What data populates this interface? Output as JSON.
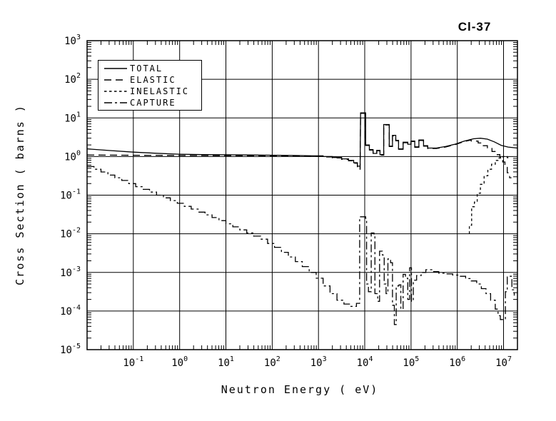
{
  "title": "Cl-37",
  "colors": {
    "foreground": "#000000",
    "background": "#ffffff"
  },
  "legend": {
    "items": [
      {
        "label": "TOTAL",
        "line_style": "solid"
      },
      {
        "label": "ELASTIC",
        "line_style": "long-dash"
      },
      {
        "label": "INELASTIC",
        "line_style": "short-dash"
      },
      {
        "label": "CAPTURE",
        "line_style": "dash-dot"
      }
    ]
  },
  "chart_data": {
    "type": "line",
    "title": "Cl-37",
    "xlabel": "Neutron Energy ( eV)",
    "ylabel": "Cross Section ( barns )",
    "xscale": "log10",
    "yscale": "log10",
    "x_units": "eV",
    "y_units": "barns",
    "xlim_log10": [
      -2,
      7.3
    ],
    "ylim_log10": [
      -5,
      3
    ],
    "x_tick_exponents": [
      -1,
      0,
      1,
      2,
      3,
      4,
      5,
      6,
      7
    ],
    "y_tick_exponents": [
      3,
      2,
      1,
      0,
      -1,
      -2,
      -3,
      -4,
      -5
    ],
    "grid": true,
    "legend_position": "top-left-inside",
    "series": [
      {
        "name": "TOTAL",
        "line_style": "solid",
        "dash": "",
        "mode": "line",
        "points_log10": [
          [
            -2.0,
            0.2
          ],
          [
            -1.5,
            0.155
          ],
          [
            -1.0,
            0.115
          ],
          [
            -0.5,
            0.085
          ],
          [
            0.0,
            0.06
          ],
          [
            0.5,
            0.05
          ],
          [
            1.0,
            0.045
          ],
          [
            1.5,
            0.04
          ],
          [
            2.0,
            0.035
          ],
          [
            2.5,
            0.028
          ],
          [
            2.9,
            0.018
          ],
          [
            3.1,
            0.018
          ],
          [
            3.1,
            0.0
          ],
          [
            3.3,
            0.0
          ],
          [
            3.3,
            -0.025
          ],
          [
            3.5,
            -0.025
          ],
          [
            3.5,
            -0.06
          ],
          [
            3.65,
            -0.06
          ],
          [
            3.65,
            -0.1
          ],
          [
            3.76,
            -0.1
          ],
          [
            3.76,
            -0.16
          ],
          [
            3.84,
            -0.16
          ],
          [
            3.84,
            -0.25
          ],
          [
            3.9,
            -0.25
          ],
          [
            3.9,
            -0.33
          ],
          [
            3.91,
            1.13
          ],
          [
            4.02,
            1.13
          ],
          [
            4.02,
            0.3
          ],
          [
            4.1,
            0.3
          ],
          [
            4.1,
            0.18
          ],
          [
            4.18,
            0.18
          ],
          [
            4.18,
            0.08
          ],
          [
            4.26,
            0.08
          ],
          [
            4.26,
            0.16
          ],
          [
            4.33,
            0.16
          ],
          [
            4.33,
            0.05
          ],
          [
            4.41,
            0.05
          ],
          [
            4.41,
            0.83
          ],
          [
            4.53,
            0.83
          ],
          [
            4.53,
            0.27
          ],
          [
            4.6,
            0.27
          ],
          [
            4.6,
            0.55
          ],
          [
            4.67,
            0.55
          ],
          [
            4.67,
            0.42
          ],
          [
            4.73,
            0.42
          ],
          [
            4.73,
            0.2
          ],
          [
            4.83,
            0.2
          ],
          [
            4.83,
            0.37
          ],
          [
            4.93,
            0.37
          ],
          [
            4.93,
            0.32
          ],
          [
            5.0,
            0.32
          ],
          [
            5.0,
            0.4
          ],
          [
            5.08,
            0.4
          ],
          [
            5.08,
            0.25
          ],
          [
            5.17,
            0.25
          ],
          [
            5.17,
            0.43
          ],
          [
            5.27,
            0.43
          ],
          [
            5.27,
            0.28
          ],
          [
            5.36,
            0.28
          ],
          [
            5.36,
            0.22
          ],
          [
            5.55,
            0.22
          ],
          [
            5.75,
            0.26
          ],
          [
            5.95,
            0.32
          ],
          [
            6.15,
            0.4
          ],
          [
            6.35,
            0.46
          ],
          [
            6.5,
            0.475
          ],
          [
            6.65,
            0.45
          ],
          [
            6.8,
            0.38
          ],
          [
            6.95,
            0.29
          ],
          [
            7.1,
            0.245
          ],
          [
            7.3,
            0.22
          ]
        ]
      },
      {
        "name": "ELASTIC",
        "line_style": "long-dash",
        "dash": "10 6",
        "mode": "line",
        "points_log10": [
          [
            -2.0,
            0.04
          ],
          [
            -1.0,
            0.032
          ],
          [
            0.0,
            0.028
          ],
          [
            0.5,
            0.026
          ],
          [
            1.0,
            0.024
          ],
          [
            1.5,
            0.022
          ],
          [
            2.0,
            0.018
          ],
          [
            2.5,
            0.012
          ],
          [
            2.9,
            0.005
          ],
          [
            3.1,
            0.005
          ],
          [
            3.1,
            -0.012
          ],
          [
            3.3,
            -0.012
          ],
          [
            3.3,
            -0.038
          ],
          [
            3.5,
            -0.038
          ],
          [
            3.5,
            -0.072
          ],
          [
            3.65,
            -0.072
          ],
          [
            3.65,
            -0.112
          ],
          [
            3.76,
            -0.112
          ],
          [
            3.76,
            -0.172
          ],
          [
            3.84,
            -0.172
          ],
          [
            3.84,
            -0.262
          ],
          [
            3.9,
            -0.262
          ],
          [
            3.9,
            -0.342
          ],
          [
            3.91,
            1.118
          ],
          [
            4.02,
            1.118
          ],
          [
            4.02,
            0.288
          ],
          [
            4.1,
            0.288
          ],
          [
            4.1,
            0.168
          ],
          [
            4.18,
            0.168
          ],
          [
            4.18,
            0.068
          ],
          [
            4.26,
            0.068
          ],
          [
            4.26,
            0.148
          ],
          [
            4.33,
            0.148
          ],
          [
            4.33,
            0.038
          ],
          [
            4.41,
            0.038
          ],
          [
            4.41,
            0.818
          ],
          [
            4.53,
            0.818
          ],
          [
            4.53,
            0.258
          ],
          [
            4.6,
            0.258
          ],
          [
            4.6,
            0.538
          ],
          [
            4.67,
            0.538
          ],
          [
            4.67,
            0.408
          ],
          [
            4.73,
            0.408
          ],
          [
            4.73,
            0.188
          ],
          [
            4.83,
            0.188
          ],
          [
            4.83,
            0.358
          ],
          [
            4.93,
            0.358
          ],
          [
            4.93,
            0.308
          ],
          [
            5.0,
            0.308
          ],
          [
            5.0,
            0.388
          ],
          [
            5.08,
            0.388
          ],
          [
            5.08,
            0.238
          ],
          [
            5.17,
            0.238
          ],
          [
            5.17,
            0.418
          ],
          [
            5.27,
            0.418
          ],
          [
            5.27,
            0.268
          ],
          [
            5.36,
            0.268
          ],
          [
            5.36,
            0.208
          ],
          [
            5.55,
            0.208
          ],
          [
            5.75,
            0.248
          ],
          [
            5.95,
            0.308
          ],
          [
            6.15,
            0.388
          ],
          [
            6.3,
            0.43
          ],
          [
            6.3,
            0.4
          ],
          [
            6.45,
            0.4
          ],
          [
            6.45,
            0.35
          ],
          [
            6.55,
            0.35
          ],
          [
            6.55,
            0.28
          ],
          [
            6.65,
            0.28
          ],
          [
            6.65,
            0.21
          ],
          [
            6.75,
            0.21
          ],
          [
            6.75,
            0.13
          ],
          [
            6.85,
            0.13
          ],
          [
            6.85,
            0.05
          ],
          [
            6.92,
            0.05
          ],
          [
            6.92,
            -0.02
          ],
          [
            6.98,
            -0.02
          ],
          [
            6.98,
            -0.14
          ],
          [
            7.03,
            -0.14
          ],
          [
            7.03,
            -0.28
          ],
          [
            7.08,
            -0.28
          ],
          [
            7.08,
            -0.42
          ],
          [
            7.13,
            -0.42
          ],
          [
            7.13,
            -0.55
          ],
          [
            7.17,
            -0.55
          ]
        ]
      },
      {
        "name": "INELASTIC",
        "line_style": "short-dash",
        "dash": "3.5 3.5",
        "mode": "line",
        "points_log10": [
          [
            6.26,
            -2.0
          ],
          [
            6.26,
            -1.78
          ],
          [
            6.31,
            -1.78
          ],
          [
            6.31,
            -1.3
          ],
          [
            6.37,
            -1.3
          ],
          [
            6.37,
            -1.18
          ],
          [
            6.43,
            -1.18
          ],
          [
            6.43,
            -0.95
          ],
          [
            6.5,
            -0.95
          ],
          [
            6.5,
            -0.72
          ],
          [
            6.58,
            -0.72
          ],
          [
            6.58,
            -0.5
          ],
          [
            6.66,
            -0.5
          ],
          [
            6.66,
            -0.33
          ],
          [
            6.74,
            -0.33
          ],
          [
            6.74,
            -0.2
          ],
          [
            6.82,
            -0.2
          ],
          [
            6.82,
            -0.1
          ],
          [
            6.9,
            -0.1
          ],
          [
            6.9,
            -0.04
          ],
          [
            6.99,
            -0.04
          ],
          [
            6.99,
            0.0
          ],
          [
            7.08,
            0.0
          ],
          [
            7.08,
            -0.03
          ],
          [
            7.12,
            -0.03
          ]
        ]
      },
      {
        "name": "CAPTURE",
        "line_style": "dash-dot",
        "dash": "11 4 3 4",
        "mode": "steps",
        "points_log10": [
          [
            -2.0,
            -0.26
          ],
          [
            -1.85,
            -0.33
          ],
          [
            -1.7,
            -0.4
          ],
          [
            -1.55,
            -0.48
          ],
          [
            -1.4,
            -0.55
          ],
          [
            -1.25,
            -0.62
          ],
          [
            -1.1,
            -0.7
          ],
          [
            -0.95,
            -0.78
          ],
          [
            -0.8,
            -0.85
          ],
          [
            -0.65,
            -0.92
          ],
          [
            -0.5,
            -1.0
          ],
          [
            -0.35,
            -1.07
          ],
          [
            -0.2,
            -1.14
          ],
          [
            -0.05,
            -1.21
          ],
          [
            0.1,
            -1.29
          ],
          [
            0.25,
            -1.36
          ],
          [
            0.4,
            -1.44
          ],
          [
            0.55,
            -1.51
          ],
          [
            0.7,
            -1.58
          ],
          [
            0.85,
            -1.66
          ],
          [
            1.0,
            -1.74
          ],
          [
            1.15,
            -1.82
          ],
          [
            1.3,
            -1.9
          ],
          [
            1.45,
            -1.98
          ],
          [
            1.6,
            -2.06
          ],
          [
            1.75,
            -2.14
          ],
          [
            1.9,
            -2.25
          ],
          [
            2.05,
            -2.35
          ],
          [
            2.2,
            -2.48
          ],
          [
            2.35,
            -2.6
          ],
          [
            2.5,
            -2.72
          ],
          [
            2.65,
            -2.85
          ],
          [
            2.8,
            -3.0
          ],
          [
            2.95,
            -3.15
          ],
          [
            3.1,
            -3.35
          ],
          [
            3.25,
            -3.55
          ],
          [
            3.4,
            -3.72
          ],
          [
            3.55,
            -3.82
          ],
          [
            3.7,
            -3.88
          ],
          [
            3.82,
            -3.8
          ],
          [
            3.89,
            -1.56
          ],
          [
            4.02,
            -1.6
          ],
          [
            4.04,
            -3.3
          ],
          [
            4.08,
            -3.5
          ],
          [
            4.14,
            -1.98
          ],
          [
            4.2,
            -2.05
          ],
          [
            4.22,
            -3.55
          ],
          [
            4.28,
            -3.75
          ],
          [
            4.32,
            -2.45
          ],
          [
            4.38,
            -2.55
          ],
          [
            4.42,
            -3.3
          ],
          [
            4.46,
            -3.55
          ],
          [
            4.5,
            -2.65
          ],
          [
            4.56,
            -2.75
          ],
          [
            4.6,
            -3.85
          ],
          [
            4.64,
            -4.35
          ],
          [
            4.68,
            -3.35
          ],
          [
            4.74,
            -3.32
          ],
          [
            4.78,
            -3.95
          ],
          [
            4.83,
            -3.05
          ],
          [
            4.88,
            -3.15
          ],
          [
            4.93,
            -3.7
          ],
          [
            4.97,
            -2.88
          ],
          [
            5.01,
            -3.75
          ],
          [
            5.05,
            -3.2
          ],
          [
            5.12,
            -3.08
          ],
          [
            5.22,
            -3.0
          ],
          [
            5.32,
            -2.93
          ],
          [
            5.45,
            -2.98
          ],
          [
            5.6,
            -3.02
          ],
          [
            5.75,
            -3.04
          ],
          [
            5.9,
            -3.07
          ],
          [
            6.05,
            -3.1
          ],
          [
            6.18,
            -3.16
          ],
          [
            6.3,
            -3.22
          ],
          [
            6.42,
            -3.3
          ],
          [
            6.52,
            -3.42
          ],
          [
            6.62,
            -3.55
          ],
          [
            6.72,
            -3.72
          ],
          [
            6.82,
            -3.95
          ],
          [
            6.88,
            -4.12
          ],
          [
            6.93,
            -4.22
          ],
          [
            6.99,
            -4.2
          ],
          [
            7.04,
            -3.5
          ],
          [
            7.08,
            -3.12
          ],
          [
            7.13,
            -3.1
          ],
          [
            7.18,
            -3.45
          ],
          [
            7.23,
            -3.6
          ]
        ]
      }
    ]
  }
}
